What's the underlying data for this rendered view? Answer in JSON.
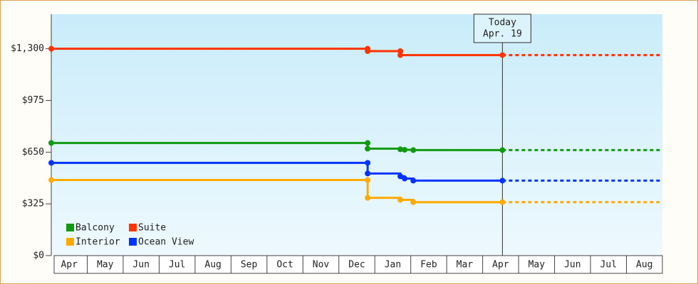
{
  "chart_data": {
    "type": "step-line",
    "xlim": [
      0,
      17
    ],
    "ylim": [
      0,
      1517
    ],
    "xticks": [
      {
        "value": 0.5,
        "label": "Apr"
      },
      {
        "value": 1.5,
        "label": "May"
      },
      {
        "value": 2.5,
        "label": "Jun"
      },
      {
        "value": 3.5,
        "label": "Jul"
      },
      {
        "value": 4.5,
        "label": "Aug"
      },
      {
        "value": 5.5,
        "label": "Sep"
      },
      {
        "value": 6.5,
        "label": "Oct"
      },
      {
        "value": 7.5,
        "label": "Nov"
      },
      {
        "value": 8.5,
        "label": "Dec"
      },
      {
        "value": 9.5,
        "label": "Jan"
      },
      {
        "value": 10.5,
        "label": "Feb"
      },
      {
        "value": 11.5,
        "label": "Mar"
      },
      {
        "value": 12.5,
        "label": "Apr"
      },
      {
        "value": 13.5,
        "label": "May"
      },
      {
        "value": 14.5,
        "label": "Jun"
      },
      {
        "value": 15.5,
        "label": "Jul"
      },
      {
        "value": 16.5,
        "label": "Aug"
      }
    ],
    "yticks": [
      {
        "value": 0,
        "label": "$0"
      },
      {
        "value": 325,
        "label": "$325"
      },
      {
        "value": 650,
        "label": "$650"
      },
      {
        "value": 975,
        "label": "$975"
      },
      {
        "value": 1300,
        "label": "$1,300"
      }
    ],
    "today": {
      "x": 12.55,
      "label": [
        "Today",
        "Apr. 19"
      ]
    },
    "legend": "lower left",
    "series": [
      {
        "name": "Balcony",
        "color": "#119911",
        "x": [
          0,
          8.8,
          8.8,
          9.71,
          9.83,
          10.07,
          12.55
        ],
        "values": [
          708,
          708,
          672,
          668,
          665,
          663,
          663
        ]
      },
      {
        "name": "Suite",
        "color": "#ff3300",
        "x": [
          0,
          8.8,
          8.8,
          9.71,
          9.71,
          12.55
        ],
        "values": [
          1300,
          1300,
          1285,
          1285,
          1260,
          1260
        ]
      },
      {
        "name": "Interior",
        "color": "#ffaa00",
        "x": [
          0,
          8.8,
          8.8,
          9.71,
          10.07,
          12.55
        ],
        "values": [
          475,
          475,
          363,
          350,
          336,
          336
        ]
      },
      {
        "name": "Ocean View",
        "color": "#0033ff",
        "x": [
          0,
          8.8,
          8.8,
          9.71,
          9.83,
          10.07,
          12.55
        ],
        "values": [
          583,
          583,
          516,
          498,
          484,
          471,
          471
        ]
      }
    ]
  }
}
